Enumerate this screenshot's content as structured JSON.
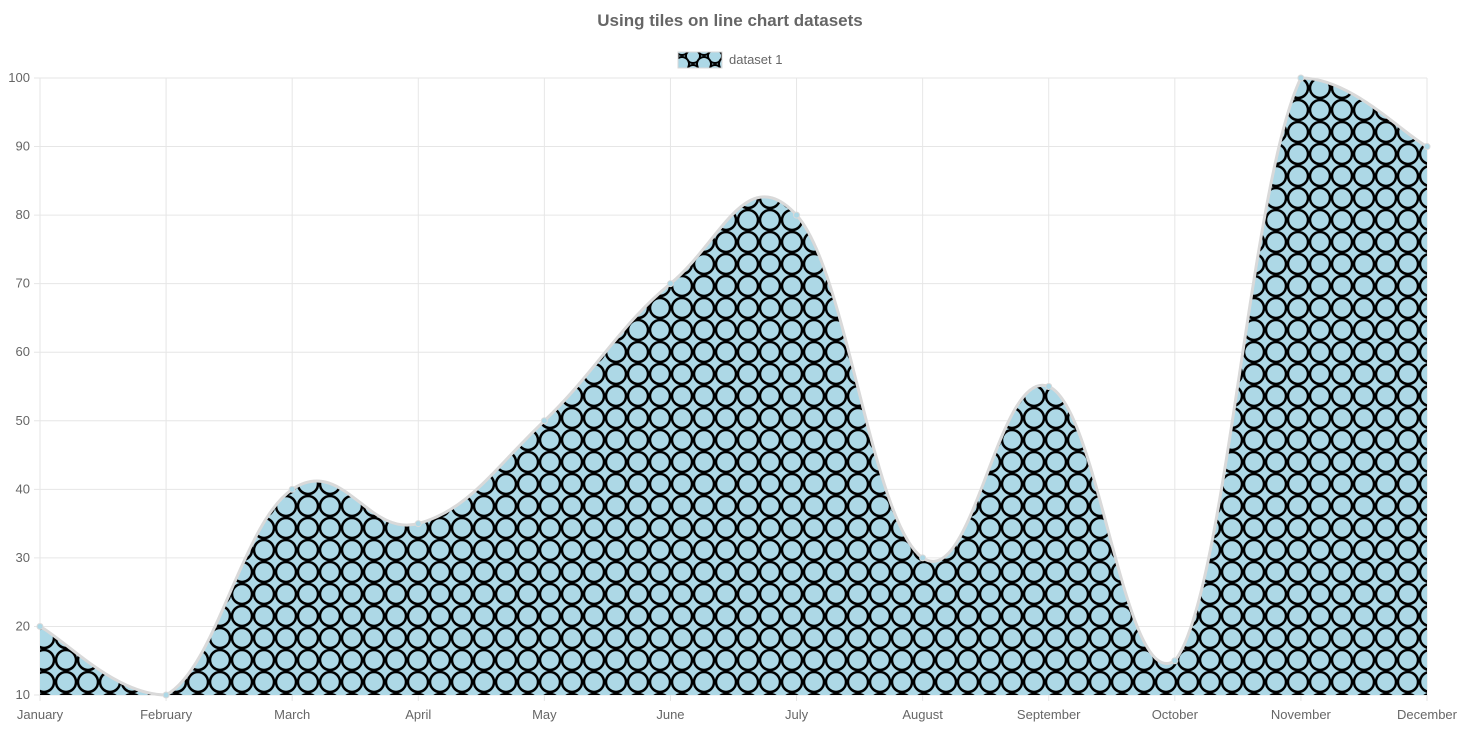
{
  "chart_data": {
    "type": "area",
    "title": "Using tiles on line chart datasets",
    "categories": [
      "January",
      "February",
      "March",
      "April",
      "May",
      "June",
      "July",
      "August",
      "September",
      "October",
      "November",
      "December"
    ],
    "series": [
      {
        "name": "dataset 1",
        "values": [
          20,
          10,
          40,
          35,
          50,
          70,
          80,
          30,
          55,
          15,
          100,
          90
        ],
        "fill_color": "#add8e6",
        "pattern_stroke_color": "#000000",
        "line_color": "#d9d9d9"
      }
    ],
    "xlabel": "",
    "ylabel": "",
    "ylim": [
      10,
      100
    ],
    "yticks": [
      10,
      20,
      30,
      40,
      50,
      60,
      70,
      80,
      90,
      100
    ],
    "grid": true,
    "legend_position": "top"
  }
}
